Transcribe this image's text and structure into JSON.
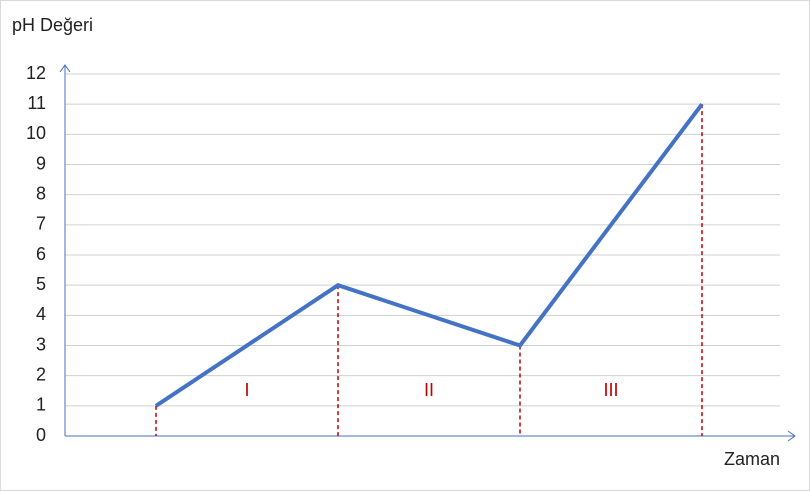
{
  "chart_data": {
    "type": "line",
    "ylabel": "pH Değeri",
    "xlabel": "Zaman",
    "categories": [
      null,
      null,
      null,
      null
    ],
    "values": [
      1,
      5,
      3,
      11
    ],
    "color": "#4472c4",
    "drop_line_color": "#c00000",
    "annotations": [
      "I",
      "II",
      "III"
    ],
    "annotation_color": "#c00000",
    "ylim": [
      0,
      12
    ],
    "yticks": [
      0,
      1,
      2,
      3,
      4,
      5,
      6,
      7,
      8,
      9,
      10,
      11,
      12
    ],
    "grid": true
  }
}
